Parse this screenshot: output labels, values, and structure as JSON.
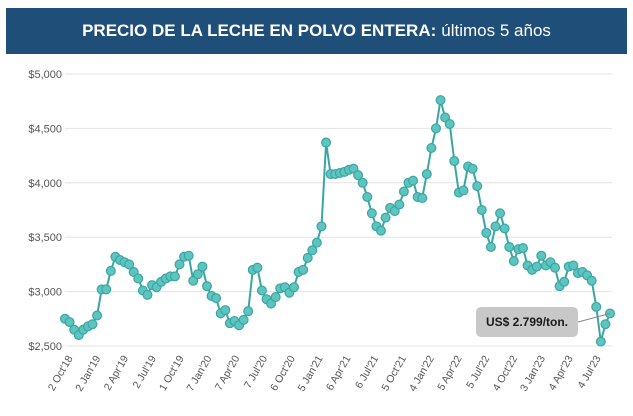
{
  "title": {
    "bold": "PRECIO DE LA LECHE EN POLVO ENTERA:",
    "regular": "últimos 5 años"
  },
  "colors": {
    "banner": "#1f4e79",
    "line": "#3aa6a2",
    "marker_fill": "#5ec4bf",
    "grid": "#e4e4e4",
    "callout": "#c8c8c8"
  },
  "callout": {
    "text": "US$ 2.799/ton.",
    "value": 2799
  },
  "chart_data": {
    "type": "line",
    "title": "PRECIO DE LA LECHE EN POLVO ENTERA: últimos 5 años",
    "ylim": [
      2500,
      5000
    ],
    "yticks": [
      {
        "value": 2500,
        "label": "$2,500"
      },
      {
        "value": 3000,
        "label": "$3,000"
      },
      {
        "value": 3500,
        "label": "$3,500"
      },
      {
        "value": 4000,
        "label": "$4,000"
      },
      {
        "value": 4500,
        "label": "$4,500"
      },
      {
        "value": 5000,
        "label": "$5,000"
      }
    ],
    "xticks": [
      "2 Oct'18",
      "2 Jan'19",
      "2 Apr'19",
      "2 Jul'19",
      "1 Oct'19",
      "7 Jan'20",
      "7 Apr'20",
      "7 Jul'20",
      "6 Oct'20",
      "5 Jan'21",
      "6 Apr'21",
      "6 Jul'21",
      "5 Oct'21",
      "4 Jan'22",
      "5 Apr'22",
      "5 Jul'22",
      "4 Oct'22",
      "3 Jan'23",
      "4 Apr'23",
      "4 Jul'23"
    ],
    "grid": "horizontal",
    "values": [
      2750,
      2720,
      2650,
      2600,
      2650,
      2680,
      2700,
      2780,
      3020,
      3020,
      3190,
      3320,
      3290,
      3270,
      3250,
      3180,
      3120,
      3010,
      2970,
      3060,
      3040,
      3090,
      3120,
      3140,
      3140,
      3250,
      3320,
      3330,
      3100,
      3160,
      3230,
      3050,
      2960,
      2940,
      2800,
      2830,
      2710,
      2730,
      2690,
      2740,
      2820,
      3200,
      3220,
      3010,
      2930,
      2890,
      2950,
      3030,
      3040,
      2990,
      3040,
      3180,
      3200,
      3310,
      3380,
      3450,
      3600,
      4370,
      4080,
      4080,
      4090,
      4100,
      4120,
      4130,
      4070,
      4000,
      3870,
      3720,
      3600,
      3560,
      3680,
      3770,
      3740,
      3800,
      3920,
      4000,
      4020,
      3870,
      3860,
      4080,
      4320,
      4500,
      4760,
      4600,
      4540,
      4200,
      3910,
      3930,
      4150,
      4130,
      3970,
      3750,
      3540,
      3410,
      3600,
      3720,
      3580,
      3410,
      3280,
      3390,
      3400,
      3240,
      3200,
      3230,
      3330,
      3240,
      3270,
      3220,
      3050,
      3090,
      3230,
      3240,
      3170,
      3180,
      3150,
      3100,
      2860,
      2540,
      2700,
      2799
    ]
  }
}
